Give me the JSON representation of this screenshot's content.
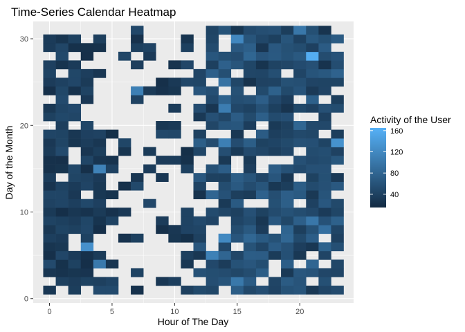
{
  "chart_data": {
    "type": "heatmap",
    "title": "Time-Series Calendar Heatmap",
    "xlabel": "Hour of The Day",
    "ylabel": "Day of the Month",
    "x_ticks": [
      0,
      5,
      10,
      15,
      20
    ],
    "y_ticks": [
      0,
      10,
      20,
      30
    ],
    "xlim": [
      -1.3,
      24.3
    ],
    "ylim": [
      -0.5,
      32
    ],
    "legend": {
      "title": "Activity of the User",
      "ticks": [
        40,
        80,
        120,
        160
      ],
      "min": 15,
      "max": 165,
      "low_color": "#132B43",
      "high_color": "#56B1F7",
      "placement": "right"
    },
    "panel_bg": "#EBEBEB",
    "grid": true,
    "rows": [
      {
        "day": 31,
        "cells": "....................."
      },
      {
        "day": 30,
        "cells": "aa.a.aa..a..aaaaa...a.a.aaa.aaaaaaa.aaa"
      },
      {
        "day": 29,
        "cells": "a.aaaa...aa...a...a.a.a.aaaaaaaaaaaaaaa"
      },
      {
        "day": 28,
        "cells": "aa.aaaa.aa.a.aaaaaaaaaa.aaaaaa.a.aaaaaa"
      },
      {
        "day": 27,
        "cells": "aaaaa.a...aa..a.aa.a.a.a.aaaaaaaaaaaaaa"
      },
      {
        "day": 26,
        "cells": "aaaaaaa.aaa.a...aaaaaa.aaaaaaaaaaaaaaa"
      },
      {
        "day": 25,
        "cells": "aaaaaaaa..a..aaaaaaaaaaaaaaaaaaaaaaaa"
      },
      {
        "day": 24,
        "cells": "aaaaaaaaa..aaaaaaaa.aaaaaaa.aaaaa.aa"
      },
      {
        "day": 23,
        "cells": "aaaaaaa...aa.aaaaaaaaaaaaaaaaaaaaaaa"
      },
      {
        "day": 22,
        "cells": "aaaa.aa...a.aaaaaaaaaaaaaaaaaaaaaa.a"
      },
      {
        "day": 21,
        "cells": "aaaaaaaaaa.aaaaaaaaaaaaaaaaaaaaaaaaa"
      },
      {
        "day": 20,
        "cells": "aaaaaaaaa.aa.aaaaaaaaaaaaaaaaaaaaaaaa"
      }
    ],
    "grid_nx": 24,
    "grid_ny": 31,
    "pattern_seed": 7
  }
}
